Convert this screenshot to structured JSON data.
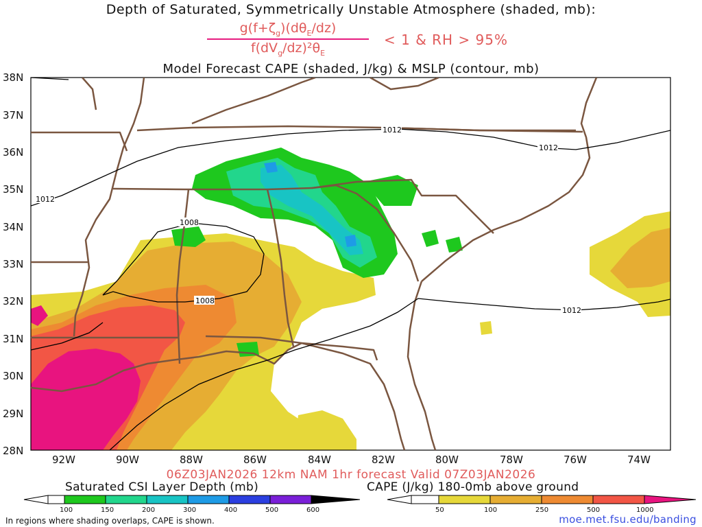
{
  "titles": {
    "line1": "Depth of Saturated, Symmetrically Unstable Atmosphere (shaded, mb):",
    "numerator_main": "g(f+ζ",
    "numerator_sub": "g",
    "numerator_rest": ")(dθ",
    "numerator_sub2": "E",
    "numerator_end": "/dz)",
    "denominator_main": "f(dV",
    "denominator_sub": "g",
    "denominator_rest": "/dz)²θ",
    "denominator_sub2": "E",
    "condition": "< 1 & RH > 95%",
    "line3": "Model Forecast CAPE (shaded, J/kg) & MSLP (contour, mb)"
  },
  "axes": {
    "lat_labels": [
      "38N",
      "37N",
      "36N",
      "35N",
      "34N",
      "33N",
      "32N",
      "31N",
      "30N",
      "29N",
      "28N"
    ],
    "lon_labels": [
      "92W",
      "90W",
      "88W",
      "86W",
      "84W",
      "82W",
      "80W",
      "78W",
      "76W",
      "74W"
    ]
  },
  "contours": {
    "labels": [
      "1012",
      "1012",
      "1012",
      "1008",
      "1008",
      "1012"
    ]
  },
  "valid_line": "06Z03JAN2026 12km NAM 1hr forecast Valid 07Z03JAN2026",
  "colorbars": {
    "csi": {
      "label": "Saturated CSI Layer Depth (mb)",
      "ticks": [
        "100",
        "150",
        "200",
        "300",
        "400",
        "500",
        "600"
      ],
      "colors": [
        "#1ec81e",
        "#22d68c",
        "#18c4c4",
        "#1e9be6",
        "#2b3fe0",
        "#7a1fd8",
        "#000000"
      ]
    },
    "cape": {
      "label": "CAPE (J/kg) 180-0mb above ground",
      "ticks": [
        "50",
        "100",
        "250",
        "500",
        "1000"
      ],
      "colors": [
        "#e6d83a",
        "#e6ad33",
        "#ee8a32",
        "#f25645",
        "#e8147f"
      ]
    }
  },
  "footer": {
    "note": "In regions where shading overlaps, CAPE is shown.",
    "source": "moe.met.fsu.edu/banding"
  },
  "colors": {
    "state_lines": "#7a5640",
    "contour": "#000000",
    "title_red": "#e05b5b",
    "link_blue": "#3a4fe0"
  }
}
